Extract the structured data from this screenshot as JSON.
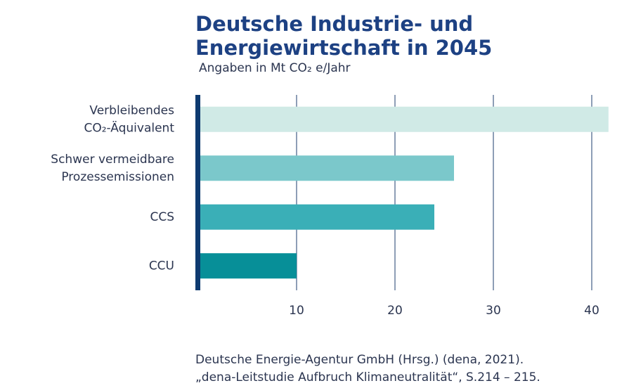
{
  "chart_data": {
    "type": "bar",
    "orientation": "horizontal",
    "title": [
      "Deutsche Industrie- und",
      "Energiewirtschaft in 2045"
    ],
    "subtitle": "Angaben in Mt CO₂ e/Jahr",
    "categories": [
      [
        "Verbleibendes",
        "CO₂-Äquivalent"
      ],
      [
        "Schwer vermeidbare",
        "Prozessemissionen"
      ],
      [
        "CCS"
      ],
      [
        "CCU"
      ]
    ],
    "values": [
      41.7,
      26,
      24,
      10
    ],
    "colors": [
      "#d0eae6",
      "#7bc8cb",
      "#3aafb7",
      "#078f98"
    ],
    "xlim": [
      0,
      42
    ],
    "xticks": [
      10,
      20,
      30,
      40
    ],
    "grid": true,
    "source": [
      "Deutsche Energie-Agentur GmbH (Hrsg.) (dena, 2021).",
      "„dena-Leitstudie Aufbruch Klimaneutralität“, S.214 – 215."
    ]
  }
}
